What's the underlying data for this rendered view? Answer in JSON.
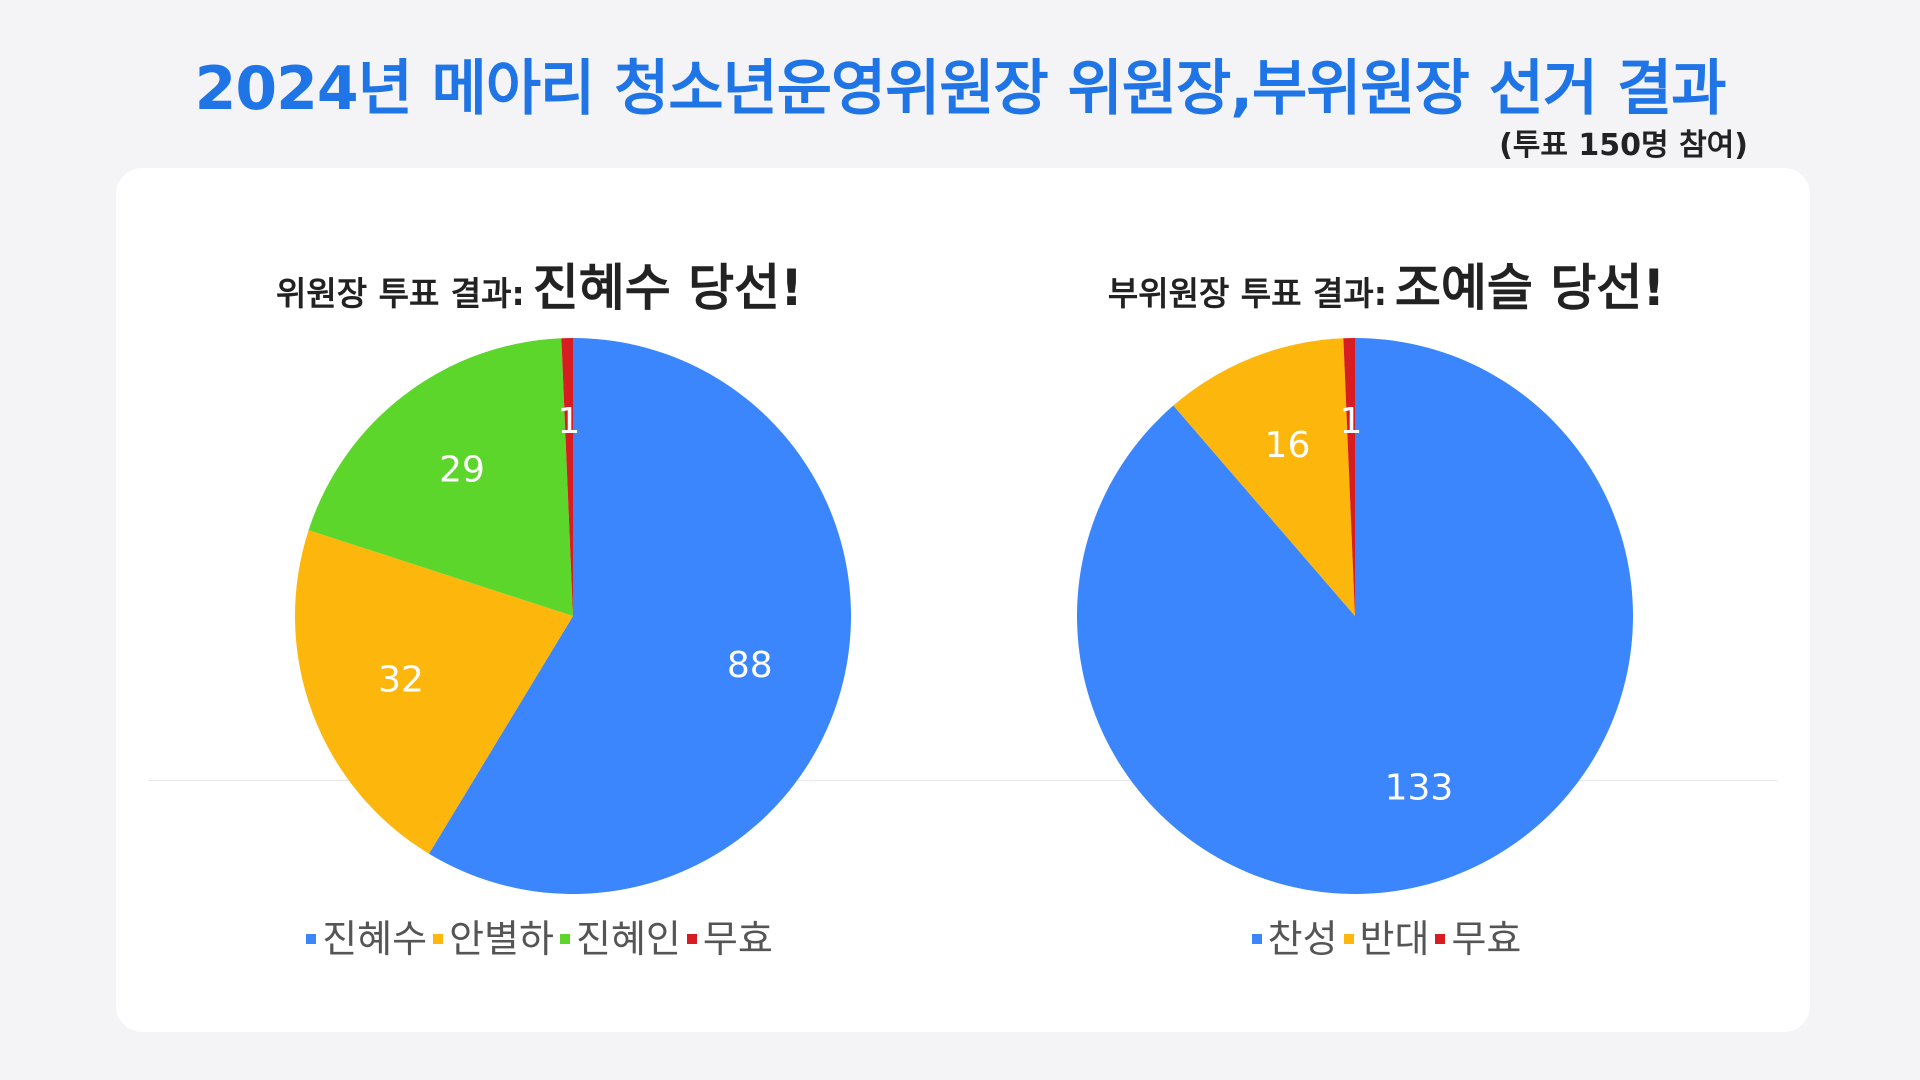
{
  "title": "2024년 메아리 청소년운영위원장 위원장,부위원장 선거 결과",
  "subtitle": "(투표 150명 참여)",
  "chart_data": [
    {
      "type": "pie",
      "title_label": "위원장 투표 결과:",
      "title_winner": "진혜수 당선!",
      "series": [
        {
          "label": "진혜수",
          "value": 88,
          "color": "#3b86fc"
        },
        {
          "label": "안별하",
          "value": 32,
          "color": "#fdb60b"
        },
        {
          "label": "진혜인",
          "value": 29,
          "color": "#5dd62c"
        },
        {
          "label": "무효",
          "value": 1,
          "color": "#d81d22"
        }
      ],
      "legend_position": "bottom"
    },
    {
      "type": "pie",
      "title_label": "부위원장 투표 결과:",
      "title_winner": "조예슬 당선!",
      "series": [
        {
          "label": "찬성",
          "value": 133,
          "color": "#3b86fc"
        },
        {
          "label": "반대",
          "value": 16,
          "color": "#fdb60b"
        },
        {
          "label": "무효",
          "value": 1,
          "color": "#d81d22"
        }
      ],
      "legend_position": "bottom"
    }
  ]
}
